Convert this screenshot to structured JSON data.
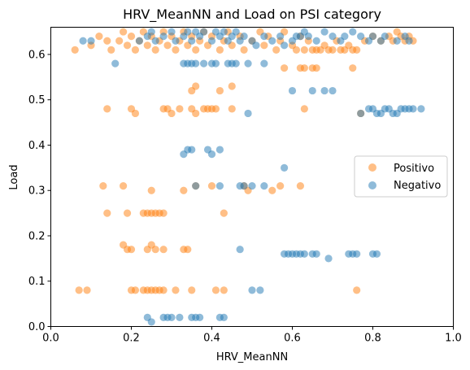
{
  "chart_data": {
    "type": "scatter",
    "title": "HRV_MeanNN and Load on PSI category",
    "xlabel": "HRV_MeanNN",
    "ylabel": "Load",
    "xlim": [
      0.0,
      1.0
    ],
    "ylim": [
      0.0,
      0.66
    ],
    "xticks": [
      "0.0",
      "0.2",
      "0.4",
      "0.6",
      "0.8",
      "1.0"
    ],
    "yticks": [
      "0.0",
      "0.1",
      "0.2",
      "0.3",
      "0.4",
      "0.5",
      "0.6"
    ],
    "legend_position": "center-right",
    "grid": false,
    "series": [
      {
        "name": "Positivo",
        "color": "#ff7f0e",
        "points": [
          [
            0.06,
            0.61
          ],
          [
            0.1,
            0.62
          ],
          [
            0.12,
            0.64
          ],
          [
            0.14,
            0.63
          ],
          [
            0.15,
            0.61
          ],
          [
            0.17,
            0.63
          ],
          [
            0.18,
            0.65
          ],
          [
            0.19,
            0.62
          ],
          [
            0.2,
            0.64
          ],
          [
            0.21,
            0.61
          ],
          [
            0.22,
            0.63
          ],
          [
            0.23,
            0.65
          ],
          [
            0.24,
            0.62
          ],
          [
            0.25,
            0.64
          ],
          [
            0.26,
            0.61
          ],
          [
            0.27,
            0.63
          ],
          [
            0.28,
            0.65
          ],
          [
            0.29,
            0.62
          ],
          [
            0.3,
            0.64
          ],
          [
            0.31,
            0.61
          ],
          [
            0.32,
            0.63
          ],
          [
            0.33,
            0.65
          ],
          [
            0.34,
            0.62
          ],
          [
            0.35,
            0.64
          ],
          [
            0.36,
            0.61
          ],
          [
            0.37,
            0.63
          ],
          [
            0.38,
            0.65
          ],
          [
            0.39,
            0.62
          ],
          [
            0.4,
            0.64
          ],
          [
            0.42,
            0.61
          ],
          [
            0.43,
            0.63
          ],
          [
            0.44,
            0.65
          ],
          [
            0.45,
            0.62
          ],
          [
            0.47,
            0.64
          ],
          [
            0.48,
            0.61
          ],
          [
            0.5,
            0.63
          ],
          [
            0.52,
            0.65
          ],
          [
            0.53,
            0.62
          ],
          [
            0.54,
            0.64
          ],
          [
            0.56,
            0.61
          ],
          [
            0.57,
            0.63
          ],
          [
            0.58,
            0.65
          ],
          [
            0.6,
            0.62
          ],
          [
            0.61,
            0.61
          ],
          [
            0.62,
            0.64
          ],
          [
            0.63,
            0.61
          ],
          [
            0.64,
            0.63
          ],
          [
            0.65,
            0.61
          ],
          [
            0.66,
            0.61
          ],
          [
            0.67,
            0.61
          ],
          [
            0.68,
            0.62
          ],
          [
            0.69,
            0.61
          ],
          [
            0.7,
            0.61
          ],
          [
            0.71,
            0.63
          ],
          [
            0.72,
            0.61
          ],
          [
            0.73,
            0.61
          ],
          [
            0.74,
            0.62
          ],
          [
            0.75,
            0.61
          ],
          [
            0.76,
            0.61
          ],
          [
            0.78,
            0.63
          ],
          [
            0.8,
            0.64
          ],
          [
            0.82,
            0.63
          ],
          [
            0.84,
            0.64
          ],
          [
            0.85,
            0.63
          ],
          [
            0.86,
            0.65
          ],
          [
            0.87,
            0.64
          ],
          [
            0.88,
            0.63
          ],
          [
            0.89,
            0.64
          ],
          [
            0.9,
            0.63
          ],
          [
            0.35,
            0.52
          ],
          [
            0.36,
            0.53
          ],
          [
            0.42,
            0.52
          ],
          [
            0.45,
            0.53
          ],
          [
            0.58,
            0.57
          ],
          [
            0.62,
            0.57
          ],
          [
            0.63,
            0.57
          ],
          [
            0.65,
            0.57
          ],
          [
            0.66,
            0.57
          ],
          [
            0.75,
            0.57
          ],
          [
            0.14,
            0.48
          ],
          [
            0.2,
            0.48
          ],
          [
            0.21,
            0.47
          ],
          [
            0.28,
            0.48
          ],
          [
            0.29,
            0.48
          ],
          [
            0.3,
            0.47
          ],
          [
            0.32,
            0.48
          ],
          [
            0.35,
            0.48
          ],
          [
            0.36,
            0.47
          ],
          [
            0.38,
            0.48
          ],
          [
            0.39,
            0.48
          ],
          [
            0.4,
            0.48
          ],
          [
            0.41,
            0.48
          ],
          [
            0.45,
            0.48
          ],
          [
            0.63,
            0.48
          ],
          [
            0.77,
            0.47
          ],
          [
            0.13,
            0.31
          ],
          [
            0.18,
            0.31
          ],
          [
            0.25,
            0.3
          ],
          [
            0.33,
            0.3
          ],
          [
            0.36,
            0.31
          ],
          [
            0.4,
            0.31
          ],
          [
            0.48,
            0.31
          ],
          [
            0.49,
            0.3
          ],
          [
            0.55,
            0.3
          ],
          [
            0.57,
            0.31
          ],
          [
            0.62,
            0.31
          ],
          [
            0.14,
            0.25
          ],
          [
            0.19,
            0.25
          ],
          [
            0.23,
            0.25
          ],
          [
            0.24,
            0.25
          ],
          [
            0.25,
            0.25
          ],
          [
            0.26,
            0.25
          ],
          [
            0.27,
            0.25
          ],
          [
            0.28,
            0.25
          ],
          [
            0.43,
            0.25
          ],
          [
            0.18,
            0.18
          ],
          [
            0.19,
            0.17
          ],
          [
            0.2,
            0.17
          ],
          [
            0.24,
            0.17
          ],
          [
            0.25,
            0.18
          ],
          [
            0.26,
            0.17
          ],
          [
            0.28,
            0.17
          ],
          [
            0.33,
            0.17
          ],
          [
            0.34,
            0.17
          ],
          [
            0.07,
            0.08
          ],
          [
            0.09,
            0.08
          ],
          [
            0.2,
            0.08
          ],
          [
            0.21,
            0.08
          ],
          [
            0.23,
            0.08
          ],
          [
            0.24,
            0.08
          ],
          [
            0.25,
            0.08
          ],
          [
            0.26,
            0.08
          ],
          [
            0.27,
            0.08
          ],
          [
            0.28,
            0.08
          ],
          [
            0.31,
            0.08
          ],
          [
            0.35,
            0.08
          ],
          [
            0.41,
            0.08
          ],
          [
            0.43,
            0.08
          ],
          [
            0.76,
            0.08
          ]
        ]
      },
      {
        "name": "Negativo",
        "color": "#1f77b4",
        "points": [
          [
            0.08,
            0.63
          ],
          [
            0.1,
            0.63
          ],
          [
            0.16,
            0.58
          ],
          [
            0.22,
            0.63
          ],
          [
            0.24,
            0.64
          ],
          [
            0.25,
            0.65
          ],
          [
            0.26,
            0.63
          ],
          [
            0.28,
            0.64
          ],
          [
            0.3,
            0.65
          ],
          [
            0.31,
            0.63
          ],
          [
            0.33,
            0.64
          ],
          [
            0.34,
            0.65
          ],
          [
            0.35,
            0.63
          ],
          [
            0.36,
            0.65
          ],
          [
            0.37,
            0.64
          ],
          [
            0.38,
            0.65
          ],
          [
            0.4,
            0.63
          ],
          [
            0.41,
            0.65
          ],
          [
            0.42,
            0.64
          ],
          [
            0.43,
            0.65
          ],
          [
            0.44,
            0.63
          ],
          [
            0.45,
            0.64
          ],
          [
            0.46,
            0.65
          ],
          [
            0.47,
            0.63
          ],
          [
            0.48,
            0.64
          ],
          [
            0.5,
            0.63
          ],
          [
            0.51,
            0.62
          ],
          [
            0.53,
            0.64
          ],
          [
            0.55,
            0.63
          ],
          [
            0.57,
            0.64
          ],
          [
            0.58,
            0.62
          ],
          [
            0.6,
            0.63
          ],
          [
            0.61,
            0.64
          ],
          [
            0.62,
            0.64
          ],
          [
            0.63,
            0.65
          ],
          [
            0.64,
            0.64
          ],
          [
            0.66,
            0.63
          ],
          [
            0.68,
            0.65
          ],
          [
            0.7,
            0.64
          ],
          [
            0.72,
            0.63
          ],
          [
            0.73,
            0.64
          ],
          [
            0.75,
            0.65
          ],
          [
            0.77,
            0.64
          ],
          [
            0.79,
            0.63
          ],
          [
            0.8,
            0.64
          ],
          [
            0.82,
            0.63
          ],
          [
            0.83,
            0.64
          ],
          [
            0.86,
            0.63
          ],
          [
            0.88,
            0.64
          ],
          [
            0.89,
            0.63
          ],
          [
            0.33,
            0.58
          ],
          [
            0.34,
            0.58
          ],
          [
            0.35,
            0.58
          ],
          [
            0.36,
            0.58
          ],
          [
            0.38,
            0.58
          ],
          [
            0.4,
            0.58
          ],
          [
            0.41,
            0.58
          ],
          [
            0.44,
            0.58
          ],
          [
            0.45,
            0.58
          ],
          [
            0.46,
            0.58
          ],
          [
            0.49,
            0.58
          ],
          [
            0.53,
            0.58
          ],
          [
            0.6,
            0.52
          ],
          [
            0.65,
            0.52
          ],
          [
            0.68,
            0.52
          ],
          [
            0.7,
            0.52
          ],
          [
            0.49,
            0.47
          ],
          [
            0.77,
            0.47
          ],
          [
            0.79,
            0.48
          ],
          [
            0.8,
            0.48
          ],
          [
            0.81,
            0.47
          ],
          [
            0.82,
            0.47
          ],
          [
            0.83,
            0.48
          ],
          [
            0.84,
            0.48
          ],
          [
            0.85,
            0.47
          ],
          [
            0.86,
            0.47
          ],
          [
            0.87,
            0.48
          ],
          [
            0.88,
            0.48
          ],
          [
            0.89,
            0.48
          ],
          [
            0.9,
            0.48
          ],
          [
            0.92,
            0.48
          ],
          [
            0.33,
            0.38
          ],
          [
            0.34,
            0.39
          ],
          [
            0.35,
            0.39
          ],
          [
            0.39,
            0.39
          ],
          [
            0.4,
            0.38
          ],
          [
            0.42,
            0.39
          ],
          [
            0.58,
            0.35
          ],
          [
            0.36,
            0.31
          ],
          [
            0.42,
            0.31
          ],
          [
            0.47,
            0.31
          ],
          [
            0.48,
            0.31
          ],
          [
            0.5,
            0.31
          ],
          [
            0.53,
            0.31
          ],
          [
            0.47,
            0.17
          ],
          [
            0.58,
            0.16
          ],
          [
            0.59,
            0.16
          ],
          [
            0.6,
            0.16
          ],
          [
            0.61,
            0.16
          ],
          [
            0.62,
            0.16
          ],
          [
            0.63,
            0.16
          ],
          [
            0.65,
            0.16
          ],
          [
            0.66,
            0.16
          ],
          [
            0.69,
            0.15
          ],
          [
            0.74,
            0.16
          ],
          [
            0.75,
            0.16
          ],
          [
            0.76,
            0.16
          ],
          [
            0.8,
            0.16
          ],
          [
            0.81,
            0.16
          ],
          [
            0.5,
            0.08
          ],
          [
            0.52,
            0.08
          ],
          [
            0.24,
            0.02
          ],
          [
            0.25,
            0.01
          ],
          [
            0.28,
            0.02
          ],
          [
            0.29,
            0.02
          ],
          [
            0.3,
            0.02
          ],
          [
            0.32,
            0.02
          ],
          [
            0.35,
            0.02
          ],
          [
            0.36,
            0.02
          ],
          [
            0.37,
            0.02
          ],
          [
            0.42,
            0.02
          ],
          [
            0.43,
            0.02
          ]
        ]
      }
    ]
  }
}
